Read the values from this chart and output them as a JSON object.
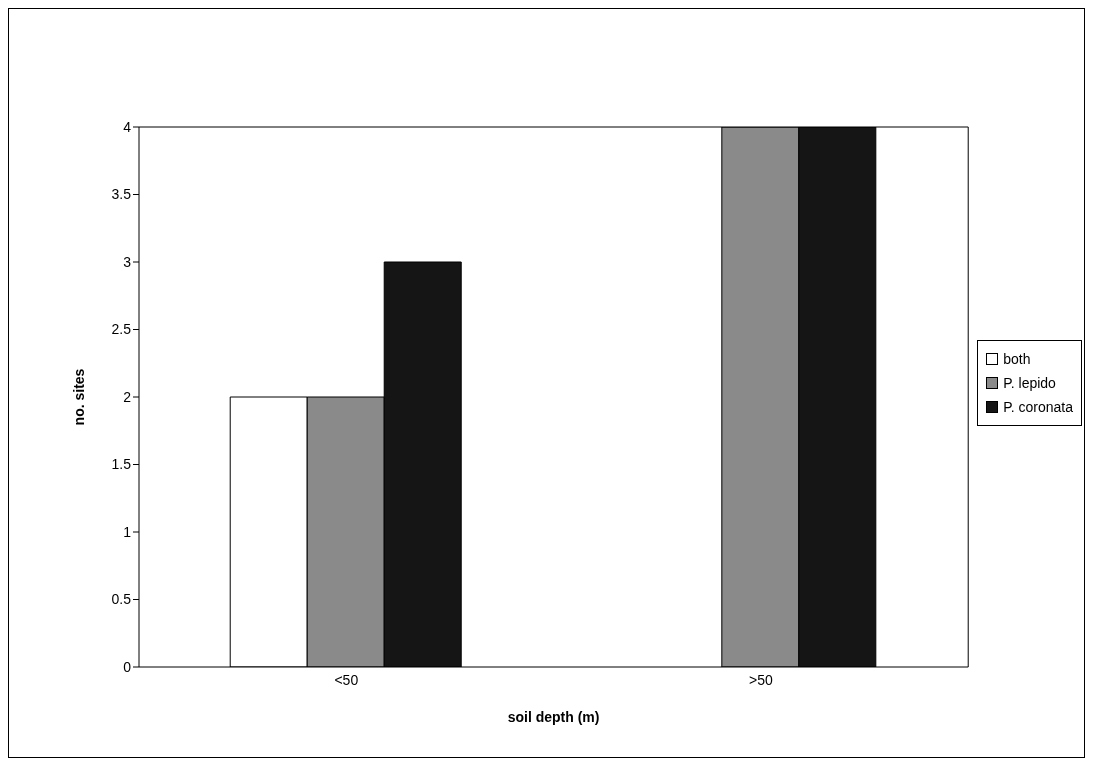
{
  "chart_data": {
    "type": "bar",
    "xlabel": "soil depth (m)",
    "ylabel": "no. sites",
    "categories": [
      "<50",
      ">50"
    ],
    "series": [
      {
        "name": "both",
        "color": "#ffffff",
        "values": [
          2,
          0
        ]
      },
      {
        "name": "P. lepido",
        "color": "#8a8a8a",
        "values": [
          2,
          4
        ]
      },
      {
        "name": "P. coronata",
        "color": "#151515",
        "values": [
          3,
          4
        ]
      }
    ],
    "ylim": [
      0,
      4
    ],
    "yticks": [
      0,
      0.5,
      1,
      1.5,
      2,
      2.5,
      3,
      3.5,
      4
    ],
    "legend": "right"
  }
}
